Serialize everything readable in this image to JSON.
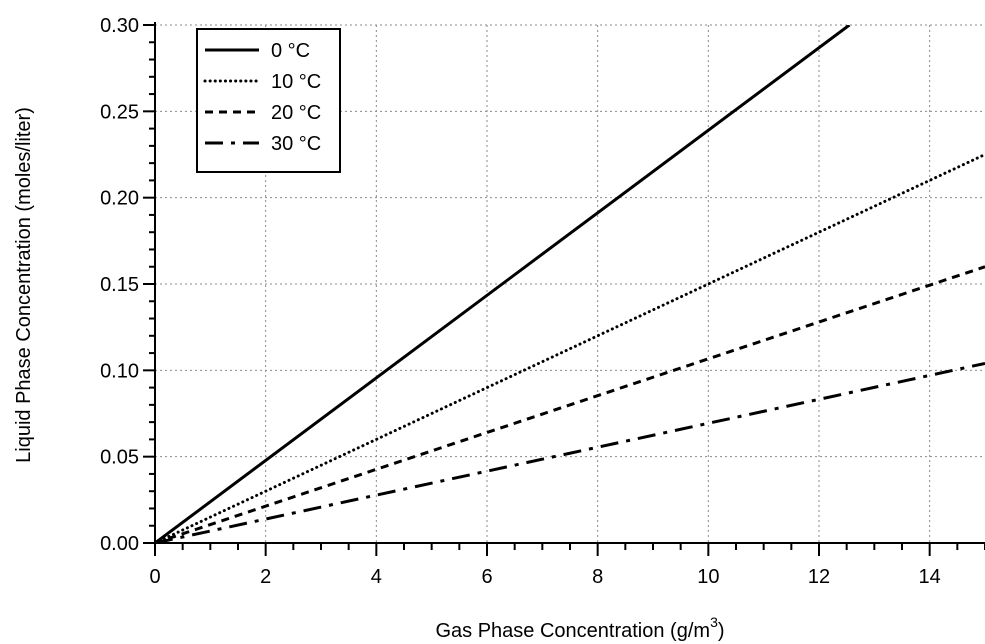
{
  "chart_data": {
    "type": "line",
    "title": "",
    "xlabel": "Gas Phase Concentration (g/m",
    "xlabel_superscript": "3",
    "xlabel_close": ")",
    "ylabel": "Liquid Phase Concentration (moles/liter)",
    "xlim": [
      0,
      15
    ],
    "ylim": [
      0,
      0.3
    ],
    "x_ticks": [
      0,
      2,
      4,
      6,
      8,
      10,
      12,
      14
    ],
    "x_tick_labels": [
      "0",
      "2",
      "4",
      "6",
      "8",
      "10",
      "12",
      "14"
    ],
    "y_ticks": [
      0,
      0.05,
      0.1,
      0.15,
      0.2,
      0.25,
      0.3
    ],
    "y_tick_labels": [
      "0.00",
      "0.05",
      "0.10",
      "0.15",
      "0.20",
      "0.25",
      "0.30"
    ],
    "grid": true,
    "legend_position": "top-left",
    "series": [
      {
        "name": "0 °C",
        "style": "solid",
        "x": [
          0,
          12.55
        ],
        "y": [
          0,
          0.3
        ]
      },
      {
        "name": "10 °C",
        "style": "dotted",
        "x": [
          0,
          15
        ],
        "y": [
          0,
          0.225
        ]
      },
      {
        "name": "20 °C",
        "style": "dashed",
        "x": [
          0,
          15
        ],
        "y": [
          0,
          0.16
        ]
      },
      {
        "name": "30 °C",
        "style": "dash-dot",
        "x": [
          0,
          15
        ],
        "y": [
          0,
          0.104
        ]
      }
    ]
  }
}
